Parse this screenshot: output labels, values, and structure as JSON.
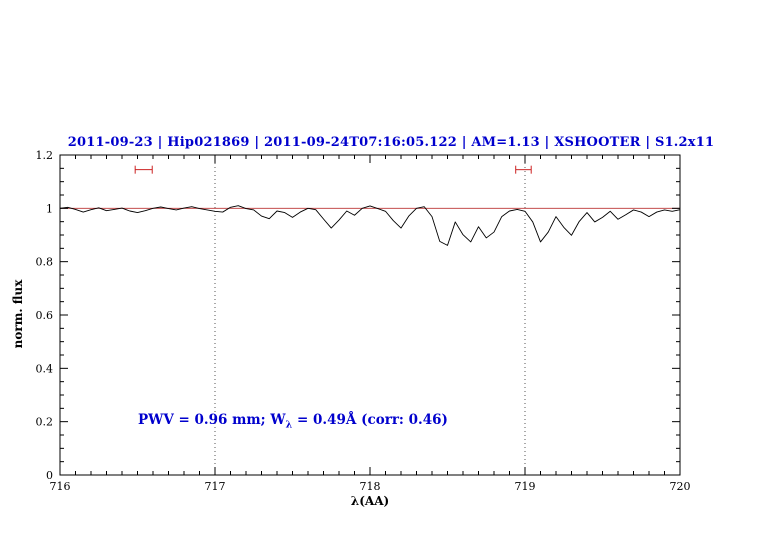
{
  "chart_data": {
    "type": "line",
    "title": "2011-09-23 | Hip021869 | 2011-09-24T07:16:05.122 | AM=1.13 | XSHOOTER | S1.2x11",
    "title_color": "#0000cd",
    "xlabel": "λ(AA)",
    "ylabel": "norm. flux",
    "xlim": [
      716,
      720
    ],
    "ylim": [
      0,
      1.2
    ],
    "grid": false,
    "legend": null,
    "x_ticks": [
      {
        "v": 716,
        "label": "716"
      },
      {
        "v": 717,
        "label": "717"
      },
      {
        "v": 718,
        "label": "718"
      },
      {
        "v": 719,
        "label": "719"
      },
      {
        "v": 720,
        "label": "720"
      }
    ],
    "y_ticks": [
      {
        "v": 0,
        "label": "0"
      },
      {
        "v": 0.2,
        "label": "0.2"
      },
      {
        "v": 0.4,
        "label": "0.4"
      },
      {
        "v": 0.6,
        "label": "0.6"
      },
      {
        "v": 0.8,
        "label": "0.8"
      },
      {
        "v": 1,
        "label": "1"
      },
      {
        "v": 1.2,
        "label": "1.2"
      }
    ],
    "x_minor_step": 0.1,
    "y_minor_step": 0.05,
    "vlines": [
      {
        "x": 717,
        "style": "dotted",
        "color": "#555555"
      },
      {
        "x": 719,
        "style": "dotted",
        "color": "#555555"
      }
    ],
    "hlines": [
      {
        "y": 1.0,
        "color": "#bb3333"
      }
    ],
    "range_markers": [
      {
        "x_center": 716.54,
        "x_halfwidth": 0.055,
        "y": 1.145,
        "color": "#cc2222"
      },
      {
        "x_center": 718.99,
        "x_halfwidth": 0.05,
        "y": 1.145,
        "color": "#cc2222"
      }
    ],
    "annotation": {
      "prefix": "PWV  =  0.96  mm;  W",
      "sub": "λ",
      "suffix": "  =  0.49Å  (corr: 0.46)",
      "color": "#0000cd"
    },
    "series": [
      {
        "name": "spectrum",
        "color": "#000000",
        "x_start": 716.0,
        "x_step": 0.05,
        "y": [
          1.0,
          1.004,
          0.996,
          0.986,
          0.995,
          1.002,
          0.991,
          0.996,
          1.001,
          0.99,
          0.984,
          0.991,
          1.0,
          1.005,
          0.999,
          0.994,
          1.001,
          1.006,
          0.999,
          0.994,
          0.989,
          0.986,
          1.004,
          1.01,
          0.999,
          0.994,
          0.971,
          0.961,
          0.99,
          0.984,
          0.966,
          0.986,
          1.0,
          0.995,
          0.96,
          0.926,
          0.956,
          0.99,
          0.974,
          1.0,
          1.009,
          0.999,
          0.989,
          0.954,
          0.926,
          0.971,
          1.0,
          1.006,
          0.969,
          0.876,
          0.861,
          0.949,
          0.901,
          0.874,
          0.931,
          0.889,
          0.911,
          0.969,
          0.99,
          0.996,
          0.989,
          0.949,
          0.874,
          0.911,
          0.969,
          0.929,
          0.899,
          0.951,
          0.984,
          0.949,
          0.966,
          0.989,
          0.959,
          0.976,
          0.994,
          0.986,
          0.969,
          0.986,
          0.994,
          0.989,
          0.995
        ]
      }
    ]
  }
}
